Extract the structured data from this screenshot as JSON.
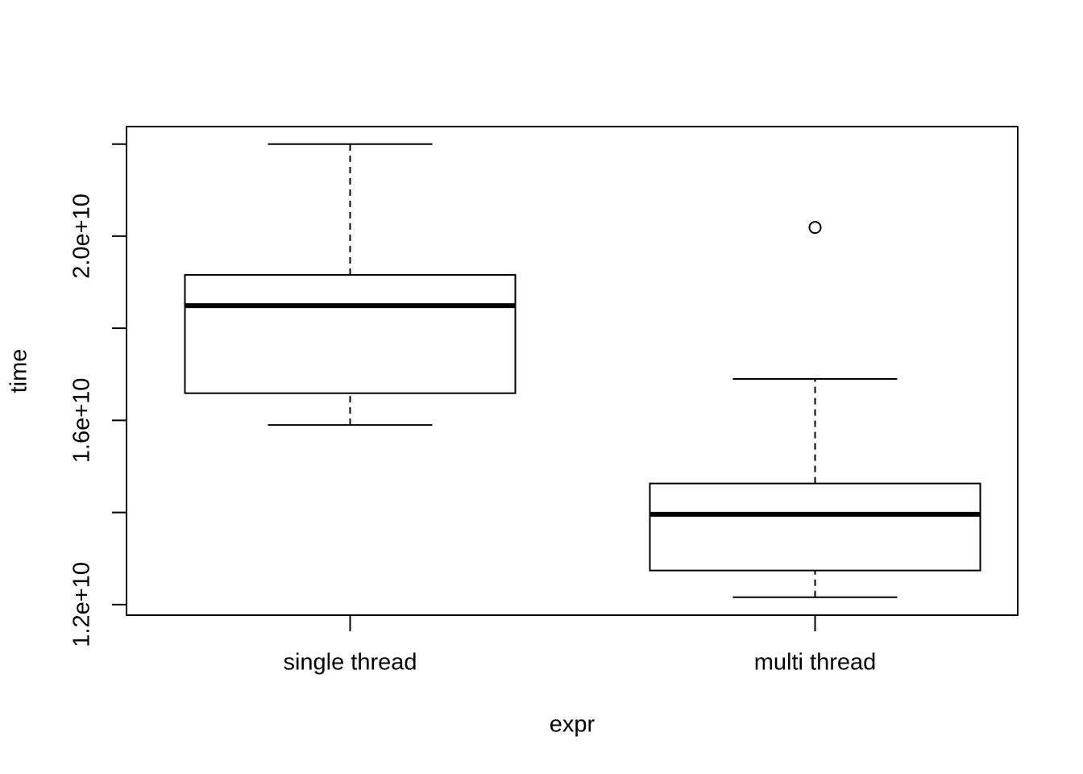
{
  "chart_data": {
    "type": "boxplot",
    "x_label": "expr",
    "y_label": "time",
    "categories": [
      "single thread",
      "multi thread"
    ],
    "boxes": [
      {
        "whislo": 15900000000,
        "q1": 16590000000,
        "med": 18490000000,
        "q3": 19160000000,
        "whishi": 22000000000,
        "outliers": []
      },
      {
        "whislo": 12160000000,
        "q1": 12740000000,
        "med": 13960000000,
        "q3": 14630000000,
        "whishi": 16900000000,
        "outliers": [
          20190000000
        ]
      }
    ],
    "color": "#ffffff",
    "ylim": [
      11770000000,
      22380000000
    ],
    "yticks": [
      {
        "value": 12000000000,
        "label": "1.2e+10"
      },
      {
        "value": 14000000000,
        "label": null
      },
      {
        "value": 16000000000,
        "label": "1.6e+10"
      },
      {
        "value": 18000000000,
        "label": null
      },
      {
        "value": 20000000000,
        "label": "2.0e+10"
      },
      {
        "value": 22000000000,
        "label": null
      }
    ]
  }
}
